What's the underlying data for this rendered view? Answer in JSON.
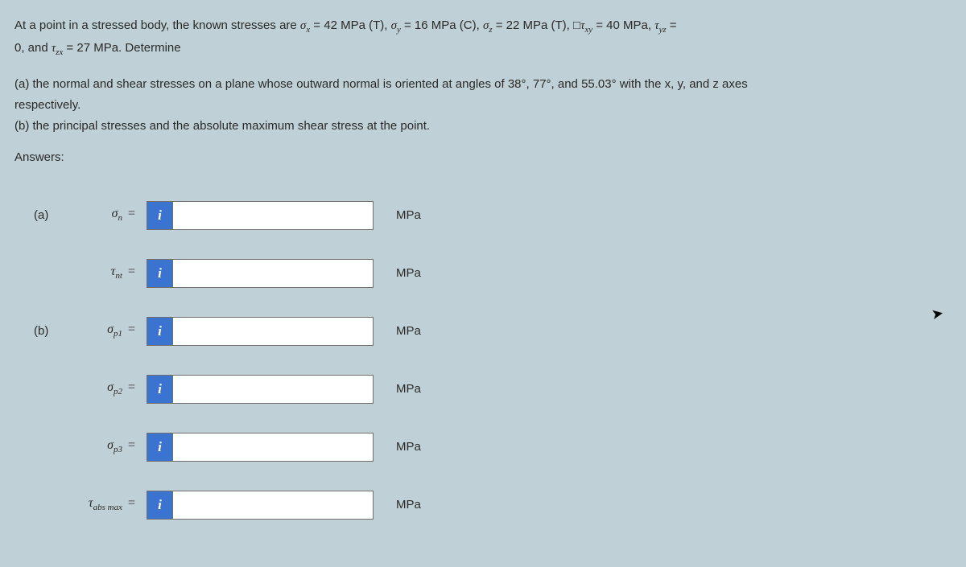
{
  "problem": {
    "line1_pre": "At a point in a stressed body, the known stresses are ",
    "sx": "σ",
    "sx_sub": "x",
    "eq": " = ",
    "v1": " 42 MPa (T), ",
    "sy": "σ",
    "sy_sub": "y",
    "v2": " 16 MPa (C), ",
    "sz": "σ",
    "sz_sub": "z",
    "v3": " 22 MPa (T), ",
    "txy_box": "□",
    "txy": "τ",
    "txy_sub": "xy",
    "v4": " 40 MPa, ",
    "tyz": "τ",
    "tyz_sub": "yz",
    "line2_pre": "0, and ",
    "tzx": "τ",
    "tzx_sub": "zx",
    "v5": " 27 MPa. Determine",
    "partA": "(a) the normal and shear stresses on a plane whose outward normal is oriented at angles of 38°, 77°, and 55.03° with the x, y, and z axes",
    "partA2": "respectively.",
    "partB": "(b) the principal stresses and the absolute maximum shear stress at the point."
  },
  "answersLabel": "Answers:",
  "rows": [
    {
      "part": "(a)",
      "labelHtml": "σ<sub>n</sub> =",
      "sym": "σ",
      "sub": "n",
      "unit": "MPa"
    },
    {
      "part": "",
      "labelHtml": "τ<sub>nt</sub> =",
      "sym": "τ",
      "sub": "nt",
      "unit": "MPa"
    },
    {
      "part": "(b)",
      "labelHtml": "σ<sub>p1</sub> =",
      "sym": "σ",
      "sub": "p1",
      "unit": "MPa"
    },
    {
      "part": "",
      "labelHtml": "σ<sub>p2</sub> =",
      "sym": "σ",
      "sub": "p2",
      "unit": "MPa"
    },
    {
      "part": "",
      "labelHtml": "σ<sub>p3</sub> =",
      "sym": "σ",
      "sub": "p3",
      "unit": "MPa"
    },
    {
      "part": "",
      "labelHtml": "τ<sub>abs max</sub> =",
      "sym": "τ",
      "sub": "abs max",
      "unit": "MPa"
    }
  ],
  "infoGlyph": "i"
}
